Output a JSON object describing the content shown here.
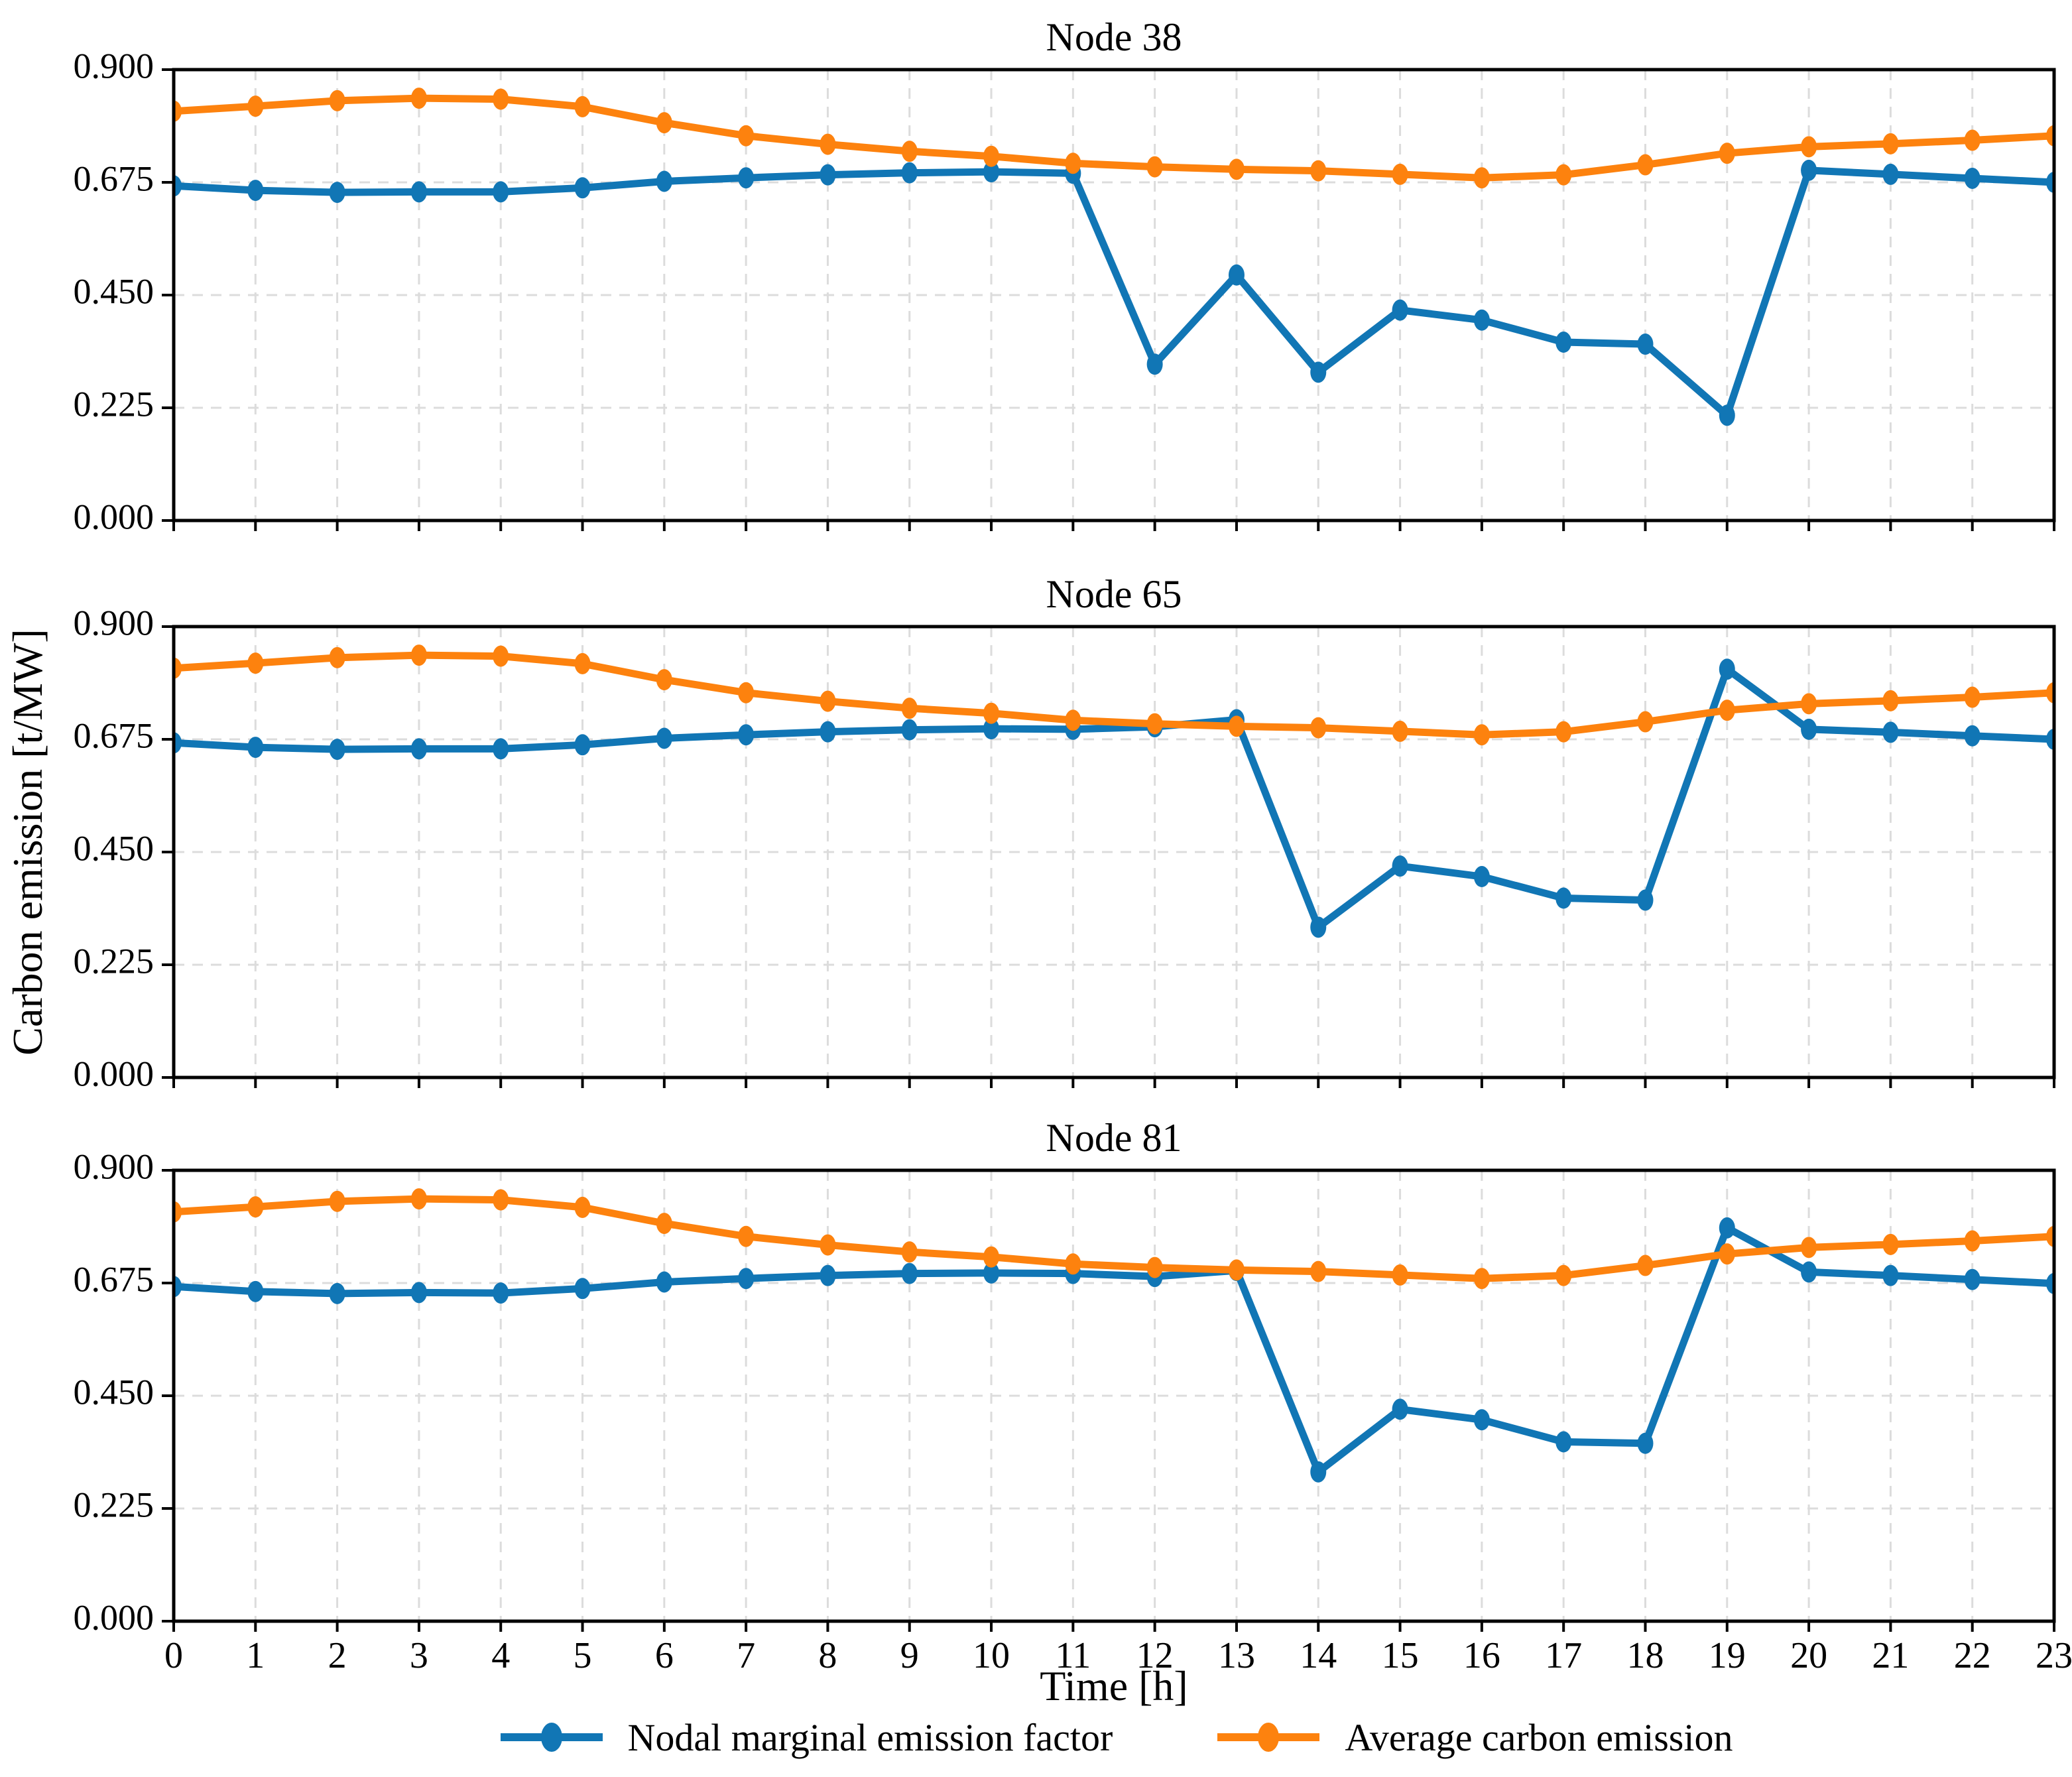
{
  "figure": {
    "ylabel": "Carbon emission [t/MW]",
    "xlabel": "Time [h]",
    "colors": {
      "nmef": "#1176b5",
      "ace": "#fd820e",
      "grid": "#dcdcdc",
      "frame": "#000000",
      "background": "#ffffff"
    }
  },
  "chart_data": {
    "type": "line",
    "xlabel": "Time [h]",
    "ylabel": "Carbon emission [t/MW]",
    "x": [
      0,
      1,
      2,
      3,
      4,
      5,
      6,
      7,
      8,
      9,
      10,
      11,
      12,
      13,
      14,
      15,
      16,
      17,
      18,
      19,
      20,
      21,
      22,
      23
    ],
    "xtick_labels": [
      "0",
      "1",
      "2",
      "3",
      "4",
      "5",
      "6",
      "7",
      "8",
      "9",
      "10",
      "11",
      "12",
      "13",
      "14",
      "15",
      "16",
      "17",
      "18",
      "19",
      "20",
      "21",
      "22",
      "23"
    ],
    "ylim": [
      0.0,
      0.9
    ],
    "yticks": [
      0.9,
      0.675,
      0.45,
      0.225,
      0.0
    ],
    "ytick_labels": [
      "0.900",
      "0.675",
      "0.450",
      "0.225",
      "0.000"
    ],
    "grid": true,
    "legend_position": "bottom",
    "legend": [
      "Nodal marginal emission factor",
      "Average carbon emission"
    ],
    "subplots": [
      {
        "title": "Node 38",
        "series": [
          {
            "name": "Nodal marginal emission factor",
            "color": "#1176b5",
            "values": [
              0.668,
              0.659,
              0.655,
              0.656,
              0.656,
              0.664,
              0.677,
              0.684,
              0.69,
              0.694,
              0.696,
              0.693,
              0.312,
              0.49,
              0.296,
              0.42,
              0.4,
              0.356,
              0.352,
              0.21,
              0.699,
              0.691,
              0.683,
              0.675
            ]
          },
          {
            "name": "Average carbon emission",
            "color": "#fd820e",
            "values": [
              0.817,
              0.827,
              0.838,
              0.843,
              0.841,
              0.826,
              0.794,
              0.768,
              0.751,
              0.737,
              0.727,
              0.713,
              0.706,
              0.701,
              0.698,
              0.691,
              0.684,
              0.69,
              0.71,
              0.733,
              0.746,
              0.752,
              0.759,
              0.768
            ]
          }
        ]
      },
      {
        "title": "Node 65",
        "series": [
          {
            "name": "Nodal marginal emission factor",
            "color": "#1176b5",
            "values": [
              0.668,
              0.659,
              0.655,
              0.656,
              0.656,
              0.664,
              0.677,
              0.684,
              0.69,
              0.694,
              0.696,
              0.695,
              0.7,
              0.714,
              0.3,
              0.422,
              0.401,
              0.358,
              0.354,
              0.815,
              0.695,
              0.689,
              0.682,
              0.675
            ]
          },
          {
            "name": "Average carbon emission",
            "color": "#fd820e",
            "values": [
              0.817,
              0.827,
              0.838,
              0.843,
              0.841,
              0.826,
              0.794,
              0.768,
              0.751,
              0.737,
              0.727,
              0.713,
              0.706,
              0.701,
              0.698,
              0.691,
              0.684,
              0.69,
              0.71,
              0.733,
              0.746,
              0.752,
              0.759,
              0.768
            ]
          }
        ]
      },
      {
        "title": "Node 81",
        "series": [
          {
            "name": "Nodal marginal emission factor",
            "color": "#1176b5",
            "values": [
              0.668,
              0.658,
              0.654,
              0.656,
              0.655,
              0.664,
              0.677,
              0.684,
              0.69,
              0.694,
              0.695,
              0.694,
              0.688,
              0.7,
              0.298,
              0.423,
              0.402,
              0.358,
              0.355,
              0.785,
              0.697,
              0.69,
              0.682,
              0.674
            ]
          },
          {
            "name": "Average carbon emission",
            "color": "#fd820e",
            "values": [
              0.817,
              0.827,
              0.838,
              0.843,
              0.841,
              0.826,
              0.794,
              0.768,
              0.751,
              0.737,
              0.727,
              0.713,
              0.706,
              0.701,
              0.698,
              0.691,
              0.684,
              0.69,
              0.71,
              0.733,
              0.746,
              0.752,
              0.759,
              0.768
            ]
          }
        ]
      }
    ]
  }
}
